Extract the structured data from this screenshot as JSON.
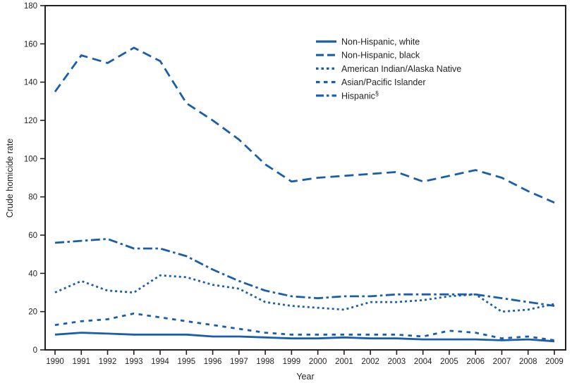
{
  "figure": {
    "title": "",
    "ylabel": "Crude homicide rate",
    "xlabel": "Year",
    "accent_color": "#1a5dab",
    "axis_color": "#231f20",
    "background_color": "#ffffff"
  },
  "chart_data": {
    "type": "line",
    "x": [
      1990,
      1991,
      1992,
      1993,
      1994,
      1995,
      1996,
      1997,
      1998,
      1999,
      2000,
      2001,
      2002,
      2003,
      2004,
      2005,
      2006,
      2007,
      2008,
      2009
    ],
    "xlabel": "Year",
    "ylabel": "Crude homicide rate",
    "ylim": [
      0,
      180
    ],
    "yticks": [
      0,
      20,
      40,
      60,
      80,
      100,
      120,
      140,
      160,
      180
    ],
    "grid": false,
    "legend_position": "upper-center-inside",
    "series": [
      {
        "name": "Non-Hispanic, white",
        "style": "solid",
        "values": [
          8,
          9,
          8.5,
          8,
          8,
          8,
          7,
          7,
          6.5,
          6,
          6,
          6.5,
          6,
          6,
          5.5,
          5.5,
          5.5,
          5,
          5.5,
          4.5
        ]
      },
      {
        "name": "Non-Hispanic, black",
        "style": "long-dash",
        "values": [
          135,
          154,
          150,
          158,
          151,
          129,
          120,
          110,
          97,
          88,
          90,
          91,
          92,
          93,
          88,
          91,
          94,
          90,
          83,
          77
        ]
      },
      {
        "name": "American Indian/Alaska Native",
        "style": "dotted",
        "values": [
          30,
          36,
          31,
          30,
          39,
          38,
          34,
          32,
          25,
          23,
          22,
          21,
          25,
          25,
          26,
          28,
          29,
          20,
          21,
          24
        ]
      },
      {
        "name": "Asian/Pacific Islander",
        "style": "dash",
        "values": [
          13,
          15,
          16,
          19,
          17,
          15,
          13,
          11,
          9,
          8,
          8,
          8,
          8,
          8,
          7,
          10,
          9,
          6,
          7,
          5
        ]
      },
      {
        "name": "Hispanic",
        "superscript": "§",
        "style": "dash-dot",
        "values": [
          56,
          57,
          58,
          53,
          53,
          49,
          42,
          36,
          31,
          28,
          27,
          28,
          28,
          29,
          29,
          29,
          29,
          27,
          25,
          23
        ]
      }
    ]
  }
}
